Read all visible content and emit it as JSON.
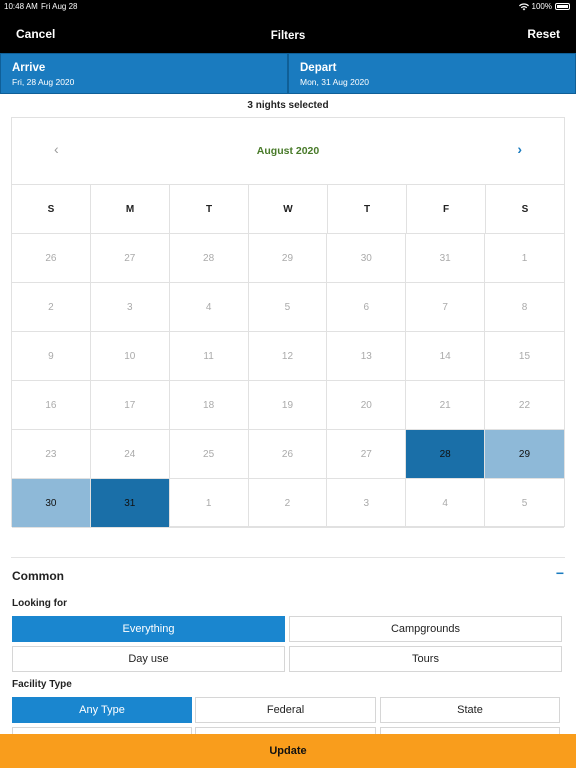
{
  "status": {
    "time": "10:48 AM",
    "date": "Fri Aug 28",
    "battery": "100%"
  },
  "nav": {
    "cancel": "Cancel",
    "title": "Filters",
    "reset": "Reset"
  },
  "arrive": {
    "label": "Arrive",
    "value": "Fri, 28 Aug 2020"
  },
  "depart": {
    "label": "Depart",
    "value": "Mon, 31 Aug 2020"
  },
  "nights_text": "3 nights selected",
  "calendar": {
    "month": "August 2020",
    "prev": "‹",
    "next": "›",
    "weekdays": [
      "S",
      "M",
      "T",
      "W",
      "T",
      "F",
      "S"
    ],
    "days": [
      [
        "26",
        "27",
        "28",
        "29",
        "30",
        "31",
        "1"
      ],
      [
        "2",
        "3",
        "4",
        "5",
        "6",
        "7",
        "8"
      ],
      [
        "9",
        "10",
        "11",
        "12",
        "13",
        "14",
        "15"
      ],
      [
        "16",
        "17",
        "18",
        "19",
        "20",
        "21",
        "22"
      ],
      [
        "23",
        "24",
        "25",
        "26",
        "27",
        "28",
        "29"
      ],
      [
        "30",
        "31",
        "1",
        "2",
        "3",
        "4",
        "5"
      ]
    ]
  },
  "common": {
    "title": "Common",
    "collapse": "−"
  },
  "looking_for": {
    "label": "Looking for",
    "options": [
      "Everything",
      "Campgrounds",
      "Day use",
      "Tours"
    ]
  },
  "facility_type": {
    "label": "Facility Type",
    "options": [
      "Any Type",
      "Federal",
      "State"
    ]
  },
  "update_button": "Update"
}
